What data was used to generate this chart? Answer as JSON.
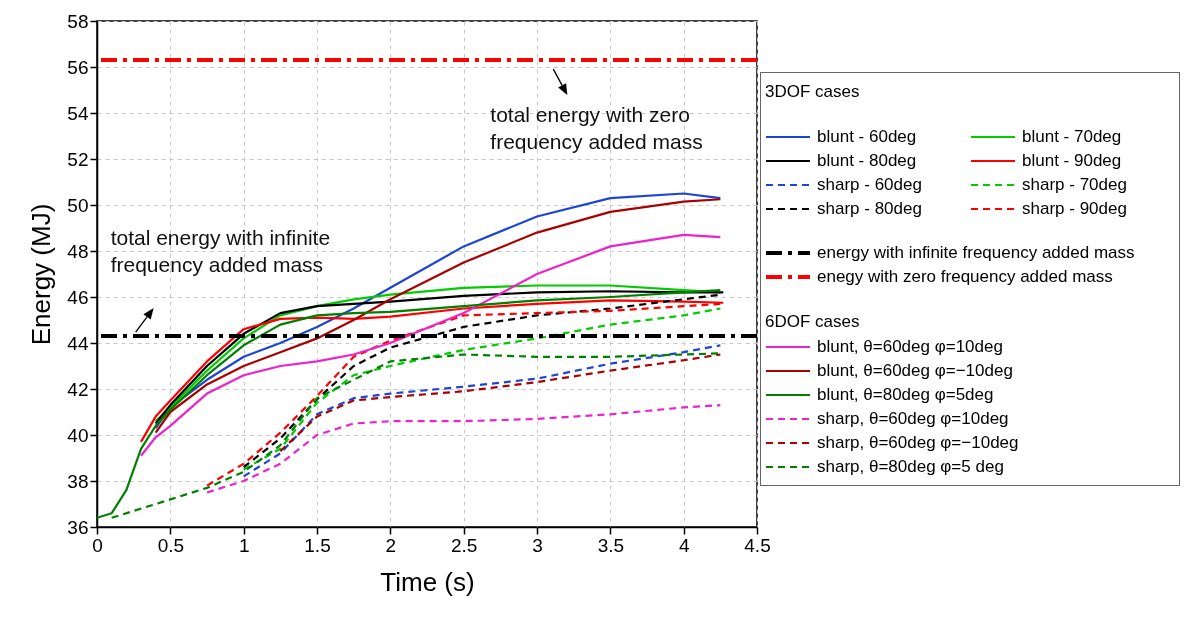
{
  "chart_data": {
    "type": "line",
    "xlabel": "Time (s)",
    "ylabel": "Energy (MJ)",
    "legend_title": "3DOF cases",
    "xlim": [
      0,
      4.5
    ],
    "xticks": [
      0,
      0.5,
      1,
      1.5,
      2,
      2.5,
      3,
      3.5,
      4,
      4.5
    ],
    "ylim": [
      36,
      58
    ],
    "yticks": [
      36,
      38,
      40,
      42,
      44,
      46,
      48,
      50,
      52,
      54,
      56,
      58
    ],
    "grid": true,
    "legend": "right",
    "marker": "none",
    "series": [
      {
        "name": "blunt - 60deg",
        "color": "#1c45d6",
        "line_style": "solid",
        "x": [
          0.4,
          0.5,
          0.75,
          1,
          1.25,
          1.5,
          1.75,
          2,
          2.5,
          3,
          3.5,
          4,
          4.25
        ],
        "values": [
          40.3,
          41.2,
          42.4,
          43.4,
          44.0,
          44.7,
          45.5,
          46.4,
          48.2,
          49.5,
          50.3,
          50.5,
          50.3
        ]
      },
      {
        "name": "blunt - 70deg",
        "color": "#00cc00",
        "line_style": "solid",
        "x": [
          0.4,
          0.5,
          0.75,
          1,
          1.25,
          1.5,
          1.75,
          2,
          2.5,
          3,
          3.5,
          4,
          4.25
        ],
        "values": [
          40.6,
          41.2,
          42.8,
          44.2,
          45.2,
          45.6,
          45.9,
          46.1,
          46.4,
          46.5,
          46.5,
          46.3,
          46.2
        ]
      },
      {
        "name": "blunt - 80deg",
        "color": "#000000",
        "line_style": "solid",
        "x": [
          0.4,
          0.5,
          0.75,
          1,
          1.25,
          1.5,
          1.75,
          2,
          2.5,
          3,
          3.5,
          4,
          4.27
        ],
        "values": [
          40.5,
          41.3,
          43.0,
          44.4,
          45.3,
          45.6,
          45.7,
          45.8,
          46.05,
          46.2,
          46.25,
          46.2,
          46.2
        ]
      },
      {
        "name": "blunt - 90deg",
        "color": "#ff0000",
        "line_style": "solid",
        "x": [
          0.3,
          0.4,
          0.5,
          0.75,
          1,
          1.25,
          1.5,
          1.75,
          2,
          2.5,
          3,
          3.5,
          4,
          4.27
        ],
        "values": [
          39.7,
          40.8,
          41.5,
          43.2,
          44.6,
          45.05,
          45.1,
          45.05,
          45.15,
          45.5,
          45.7,
          45.85,
          45.8,
          45.75
        ]
      },
      {
        "name": "sharp - 60deg",
        "color": "#1c45d6",
        "line_style": "dashed",
        "x": [
          1,
          1.25,
          1.5,
          1.75,
          2,
          2.5,
          3,
          3.5,
          4,
          4.25
        ],
        "values": [
          38.2,
          39.2,
          40.9,
          41.6,
          41.8,
          42.1,
          42.45,
          43.1,
          43.6,
          43.9
        ]
      },
      {
        "name": "sharp - 70deg",
        "color": "#00cc00",
        "line_style": "dashed",
        "x": [
          1,
          1.25,
          1.5,
          1.75,
          2,
          2.5,
          3,
          3.5,
          4,
          4.25
        ],
        "values": [
          38.5,
          39.4,
          41.4,
          42.6,
          43.0,
          43.7,
          44.2,
          44.8,
          45.2,
          45.5
        ]
      },
      {
        "name": "sharp - 80deg",
        "color": "#000000",
        "line_style": "dashed",
        "x": [
          1,
          1.25,
          1.5,
          1.75,
          2,
          2.5,
          3,
          3.5,
          4,
          4.25
        ],
        "values": [
          38.6,
          39.85,
          41.55,
          43.0,
          43.8,
          44.7,
          45.2,
          45.5,
          45.9,
          46.1
        ]
      },
      {
        "name": "sharp - 90deg",
        "color": "#ff0000",
        "line_style": "dashed",
        "x": [
          0.75,
          1,
          1.25,
          1.5,
          1.75,
          2,
          2.5,
          3,
          3.5,
          4,
          4.25
        ],
        "values": [
          37.8,
          38.75,
          40.1,
          41.7,
          43.4,
          44.1,
          45.2,
          45.3,
          45.4,
          45.6,
          45.7
        ]
      },
      {
        "name": "blunt, θ=60deg φ=10deg",
        "color": "#ee22cc",
        "line_style": "solid",
        "x": [
          0.3,
          0.4,
          0.5,
          0.75,
          1,
          1.25,
          1.5,
          1.75,
          2,
          2.5,
          3,
          3.5,
          4,
          4.25
        ],
        "values": [
          39.1,
          39.9,
          40.4,
          41.8,
          42.6,
          43.0,
          43.2,
          43.5,
          44.0,
          45.3,
          47.0,
          48.2,
          48.7,
          48.6
        ]
      },
      {
        "name": "blunt, θ=60deg φ=−10deg",
        "color": "#aa0000",
        "line_style": "solid",
        "x": [
          0.4,
          0.5,
          0.75,
          1,
          1.25,
          1.5,
          1.75,
          2,
          2.5,
          3,
          3.5,
          4,
          4.25
        ],
        "values": [
          40.1,
          41.0,
          42.2,
          43.0,
          43.6,
          44.2,
          45.0,
          45.9,
          47.5,
          48.8,
          49.7,
          50.15,
          50.25
        ]
      },
      {
        "name": "blunt, θ=80deg φ=5deg",
        "color": "#008000",
        "line_style": "solid",
        "x": [
          0,
          0.1,
          0.2,
          0.3,
          0.4,
          0.5,
          0.75,
          1,
          1.25,
          1.5,
          1.75,
          2,
          2.5,
          3,
          3.5,
          4,
          4.25
        ],
        "values": [
          36.4,
          36.6,
          37.6,
          39.4,
          40.4,
          41.1,
          42.6,
          43.9,
          44.8,
          45.2,
          45.3,
          45.35,
          45.6,
          45.85,
          46.0,
          46.2,
          46.3
        ]
      },
      {
        "name": "sharp, θ=60deg φ=10deg",
        "color": "#ee22cc",
        "line_style": "dashed",
        "x": [
          0.75,
          1,
          1.25,
          1.5,
          1.75,
          2,
          2.5,
          3,
          3.5,
          4,
          4.25
        ],
        "values": [
          37.5,
          38.0,
          38.75,
          40.0,
          40.5,
          40.6,
          40.6,
          40.7,
          40.9,
          41.2,
          41.3
        ]
      },
      {
        "name": "sharp, θ=60deg φ=−10deg",
        "color": "#aa0000",
        "line_style": "dashed",
        "x": [
          1.25,
          1.5,
          1.75,
          2,
          2.5,
          3,
          3.5,
          4,
          4.25
        ],
        "values": [
          39.3,
          40.8,
          41.5,
          41.65,
          41.9,
          42.3,
          42.8,
          43.25,
          43.5
        ]
      },
      {
        "name": "sharp, θ=80deg φ=5 deg",
        "color": "#008000",
        "line_style": "dashed",
        "x": [
          0.1,
          0.25,
          0.5,
          0.75,
          1,
          1.25,
          1.5,
          1.75,
          2,
          2.5,
          3,
          3.5,
          4,
          4.25
        ],
        "values": [
          36.4,
          36.7,
          37.2,
          37.7,
          38.4,
          39.55,
          41.6,
          42.4,
          43.2,
          43.5,
          43.4,
          43.4,
          43.5,
          43.55
        ]
      }
    ],
    "ref_lines": [
      {
        "axis": "y",
        "value": 44.3,
        "label": "energy with infinite frequency added mass",
        "color": "#000000",
        "line_style": "dashed"
      },
      {
        "axis": "y",
        "value": 56.3,
        "label": "enegy with zero frequency added mass",
        "color": "#ff0000",
        "line_style": "dashed"
      }
    ],
    "annotations": [
      {
        "text": "total energy with zero frequency added mass",
        "x": 3.2,
        "y": 56.3
      },
      {
        "text": "total energy with infinite frequency added mass",
        "x": 0.25,
        "y": 44.3
      },
      "6DOF cases"
    ]
  }
}
